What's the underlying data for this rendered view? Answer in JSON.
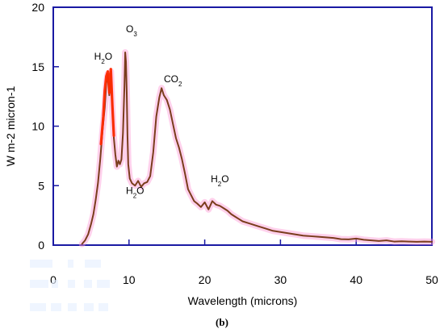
{
  "figure": {
    "caption_label": "(b)"
  },
  "chart_data": {
    "type": "line",
    "title": "",
    "xlabel": "Wavelength (microns)",
    "ylabel": "W m-2 micron-1",
    "xlim": [
      0,
      50
    ],
    "ylim": [
      0,
      20
    ],
    "x_ticks": [
      0,
      10,
      20,
      30,
      40,
      50
    ],
    "y_ticks": [
      0,
      5,
      10,
      15,
      20
    ],
    "x_tick_labels": [
      "0",
      "10",
      "20",
      "30",
      "40",
      "50"
    ],
    "y_tick_labels": [
      "0",
      "5",
      "10",
      "15",
      "20"
    ],
    "grid": false,
    "legend": "none",
    "series": [
      {
        "x": [
          3.8,
          4.2,
          4.6,
          5.0,
          5.3,
          5.6,
          5.9,
          6.2,
          6.5,
          6.8,
          7.0,
          7.2,
          7.4,
          7.6,
          7.8,
          8.0,
          8.2,
          8.4,
          8.6,
          8.8,
          9.0,
          9.2,
          9.4,
          9.5,
          9.6,
          9.7,
          9.8,
          9.9,
          10.1,
          10.4,
          10.8,
          11.2,
          11.6,
          12.0,
          12.4,
          12.8,
          13.2,
          13.6,
          14.0,
          14.3,
          14.6,
          15.0,
          15.4,
          15.8,
          16.2,
          16.6,
          17.0,
          17.4,
          17.8,
          18.2,
          18.6,
          19.0,
          19.5,
          20.0,
          20.5,
          21.0,
          21.5,
          22.0,
          22.5,
          23.0,
          23.5,
          24.0,
          24.5,
          25.0,
          26.0,
          27.0,
          28.0,
          29.0,
          30.0,
          31.0,
          32.0,
          33.0,
          34.0,
          35.0,
          36.0,
          37.0,
          38.0,
          39.0,
          40.0,
          41.0,
          42.0,
          43.0,
          44.0,
          45.0,
          46.0,
          47.0,
          48.0,
          49.0,
          50.0
        ],
        "y": [
          0.1,
          0.4,
          0.9,
          1.8,
          2.6,
          3.8,
          5.2,
          7.2,
          9.6,
          11.6,
          13.6,
          14.4,
          12.6,
          14.6,
          11.4,
          9.0,
          7.6,
          6.6,
          7.1,
          6.8,
          7.2,
          9.4,
          13.4,
          16.2,
          15.4,
          12.8,
          9.2,
          6.8,
          5.6,
          5.2,
          5.0,
          5.4,
          4.9,
          5.2,
          5.3,
          5.8,
          7.8,
          10.8,
          12.4,
          13.2,
          12.6,
          12.2,
          11.4,
          10.2,
          9.0,
          8.2,
          7.2,
          6.0,
          4.7,
          4.2,
          3.7,
          3.5,
          3.2,
          3.6,
          3.0,
          3.7,
          3.4,
          3.3,
          3.1,
          2.9,
          2.6,
          2.4,
          2.2,
          2.0,
          1.8,
          1.6,
          1.4,
          1.2,
          1.1,
          1.0,
          0.9,
          0.8,
          0.75,
          0.7,
          0.65,
          0.6,
          0.5,
          0.48,
          0.55,
          0.45,
          0.4,
          0.35,
          0.4,
          0.3,
          0.32,
          0.3,
          0.28,
          0.3,
          0.28
        ]
      }
    ],
    "highlights": [
      {
        "x": [
          6.3,
          6.6,
          6.8,
          7.0,
          7.2,
          7.4,
          7.6,
          7.8,
          8.0
        ],
        "y": [
          8.5,
          10.8,
          13.0,
          14.2,
          14.6,
          12.8,
          14.8,
          11.8,
          9.2
        ]
      }
    ],
    "annotations": [
      {
        "text": "H",
        "subscript": "2",
        "suffix": "O",
        "x": 5.4,
        "y": 15.6
      },
      {
        "text": "O",
        "subscript": "3",
        "suffix": "",
        "x": 9.6,
        "y": 17.9
      },
      {
        "text": "CO",
        "subscript": "2",
        "suffix": "",
        "x": 14.6,
        "y": 13.7
      },
      {
        "text": "H",
        "subscript": "2",
        "suffix": "O",
        "x": 9.6,
        "y": 4.3
      },
      {
        "text": "H",
        "subscript": "2",
        "suffix": "O",
        "x": 20.8,
        "y": 5.3
      }
    ],
    "colors": {
      "axis": "#1a1aa3",
      "line": "#7a3d1d",
      "highlight": "#ff2a00",
      "glow": "#ff9ad5"
    }
  }
}
